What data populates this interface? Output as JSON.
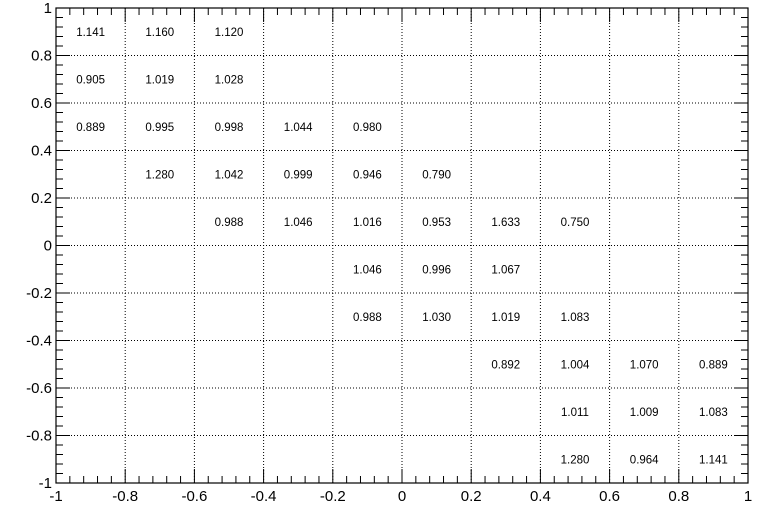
{
  "chart_data": {
    "type": "heatmap",
    "title": "",
    "xlabel": "",
    "ylabel": "",
    "xlim": [
      -1,
      1
    ],
    "ylim": [
      -1,
      1
    ],
    "grid": true,
    "bins_x": 10,
    "bins_y": 10,
    "x_ticks": [
      -1,
      -0.8,
      -0.6,
      -0.4,
      -0.2,
      0,
      0.2,
      0.4,
      0.6,
      0.8,
      1
    ],
    "y_ticks": [
      1,
      0.8,
      0.6,
      0.4,
      0.2,
      0,
      -0.2,
      -0.4,
      -0.6,
      -0.8,
      -1
    ],
    "x_tick_labels": [
      "-1",
      "-0.8",
      "-0.6",
      "-0.4",
      "-0.2",
      "0",
      "0.2",
      "0.4",
      "0.6",
      "0.8",
      "1"
    ],
    "y_tick_labels": [
      "1",
      "0.8",
      "0.6",
      "0.4",
      "0.2",
      "0",
      "-0.2",
      "-0.4",
      "-0.6",
      "-0.8",
      "-1"
    ],
    "cells": [
      {
        "x": -0.9,
        "y": 0.9,
        "label": "1.141"
      },
      {
        "x": -0.7,
        "y": 0.9,
        "label": "1.160"
      },
      {
        "x": -0.5,
        "y": 0.9,
        "label": "1.120"
      },
      {
        "x": -0.9,
        "y": 0.7,
        "label": "0.905"
      },
      {
        "x": -0.7,
        "y": 0.7,
        "label": "1.019"
      },
      {
        "x": -0.5,
        "y": 0.7,
        "label": "1.028"
      },
      {
        "x": -0.9,
        "y": 0.5,
        "label": "0.889"
      },
      {
        "x": -0.7,
        "y": 0.5,
        "label": "0.995"
      },
      {
        "x": -0.5,
        "y": 0.5,
        "label": "0.998"
      },
      {
        "x": -0.3,
        "y": 0.5,
        "label": "1.044"
      },
      {
        "x": -0.1,
        "y": 0.5,
        "label": "0.980"
      },
      {
        "x": -0.7,
        "y": 0.3,
        "label": "1.280"
      },
      {
        "x": -0.5,
        "y": 0.3,
        "label": "1.042"
      },
      {
        "x": -0.3,
        "y": 0.3,
        "label": "0.999"
      },
      {
        "x": -0.1,
        "y": 0.3,
        "label": "0.946"
      },
      {
        "x": 0.1,
        "y": 0.3,
        "label": "0.790"
      },
      {
        "x": -0.5,
        "y": 0.1,
        "label": "0.988"
      },
      {
        "x": -0.3,
        "y": 0.1,
        "label": "1.046"
      },
      {
        "x": -0.1,
        "y": 0.1,
        "label": "1.016"
      },
      {
        "x": 0.1,
        "y": 0.1,
        "label": "0.953"
      },
      {
        "x": 0.3,
        "y": 0.1,
        "label": "1.633"
      },
      {
        "x": 0.5,
        "y": 0.1,
        "label": "0.750"
      },
      {
        "x": -0.1,
        "y": -0.1,
        "label": "1.046"
      },
      {
        "x": 0.1,
        "y": -0.1,
        "label": "0.996"
      },
      {
        "x": 0.3,
        "y": -0.1,
        "label": "1.067"
      },
      {
        "x": -0.1,
        "y": -0.3,
        "label": "0.988"
      },
      {
        "x": 0.1,
        "y": -0.3,
        "label": "1.030"
      },
      {
        "x": 0.3,
        "y": -0.3,
        "label": "1.019"
      },
      {
        "x": 0.5,
        "y": -0.3,
        "label": "1.083"
      },
      {
        "x": 0.3,
        "y": -0.5,
        "label": "0.892"
      },
      {
        "x": 0.5,
        "y": -0.5,
        "label": "1.004"
      },
      {
        "x": 0.7,
        "y": -0.5,
        "label": "1.070"
      },
      {
        "x": 0.9,
        "y": -0.5,
        "label": "0.889"
      },
      {
        "x": 0.5,
        "y": -0.7,
        "label": "1.011"
      },
      {
        "x": 0.7,
        "y": -0.7,
        "label": "1.009"
      },
      {
        "x": 0.9,
        "y": -0.7,
        "label": "1.083"
      },
      {
        "x": 0.5,
        "y": -0.9,
        "label": "1.280"
      },
      {
        "x": 0.7,
        "y": -0.9,
        "label": "0.964"
      },
      {
        "x": 0.9,
        "y": -0.9,
        "label": "1.141"
      }
    ]
  }
}
